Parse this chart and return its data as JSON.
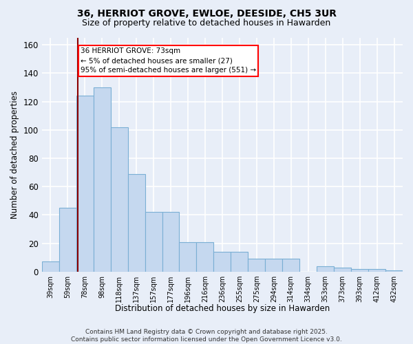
{
  "title": "36, HERRIOT GROVE, EWLOE, DEESIDE, CH5 3UR",
  "subtitle": "Size of property relative to detached houses in Hawarden",
  "xlabel": "Distribution of detached houses by size in Hawarden",
  "ylabel": "Number of detached properties",
  "categories": [
    "39sqm",
    "59sqm",
    "78sqm",
    "98sqm",
    "118sqm",
    "137sqm",
    "157sqm",
    "177sqm",
    "196sqm",
    "216sqm",
    "236sqm",
    "255sqm",
    "275sqm",
    "294sqm",
    "314sqm",
    "334sqm",
    "353sqm",
    "373sqm",
    "393sqm",
    "412sqm",
    "432sqm"
  ],
  "values": [
    7,
    45,
    124,
    130,
    102,
    69,
    42,
    42,
    21,
    21,
    14,
    14,
    9,
    9,
    9,
    0,
    4,
    3,
    2,
    2,
    1
  ],
  "bar_color": "#c5d8ef",
  "bar_edge_color": "#7aafd4",
  "vline_x_index": 1.6,
  "annotation_text": "36 HERRIOT GROVE: 73sqm\n← 5% of detached houses are smaller (27)\n95% of semi-detached houses are larger (551) →",
  "annotation_box_color": "white",
  "annotation_box_edge_color": "red",
  "vline_color": "#8b0000",
  "footer_text": "Contains HM Land Registry data © Crown copyright and database right 2025.\nContains public sector information licensed under the Open Government Licence v3.0.",
  "ylim": [
    0,
    165
  ],
  "yticks": [
    0,
    20,
    40,
    60,
    80,
    100,
    120,
    140,
    160
  ],
  "background_color": "#e8eef8",
  "grid_color": "white",
  "title_fontsize": 10,
  "subtitle_fontsize": 9
}
